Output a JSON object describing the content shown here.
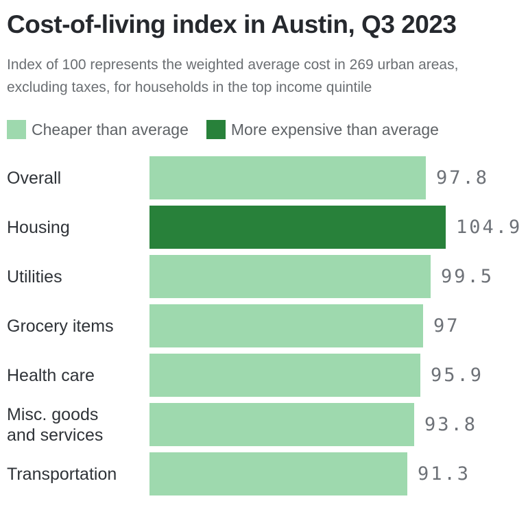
{
  "chart_data": {
    "type": "bar",
    "orientation": "horizontal",
    "title": "Cost-of-living index in Austin, Q3 2023",
    "subtitle": "Index of 100 represents the weighted average cost in 269 urban areas, excluding taxes, for households in the top income quintile",
    "categories": [
      "Overall",
      "Housing",
      "Utilities",
      "Grocery items",
      "Health care",
      "Misc. goods and services",
      "Transportation"
    ],
    "values": [
      97.8,
      104.9,
      99.5,
      97,
      95.9,
      93.8,
      91.3
    ],
    "value_labels": [
      "97.8",
      "104.9",
      "99.5",
      "97",
      "95.9",
      "93.8",
      "91.3"
    ],
    "xlim": [
      0,
      104.9
    ],
    "reference_value": 100,
    "grid": false,
    "legend_position": "top",
    "legend": [
      {
        "label": "Cheaper than average",
        "color": "#9ed9ae"
      },
      {
        "label": "More expensive than average",
        "color": "#28813a"
      }
    ],
    "colors": {
      "cheaper": "#9ed9ae",
      "expensive": "#28813a",
      "title": "#26292e",
      "subtitle": "#6a6e72",
      "category_label": "#2f3338",
      "value_label": "#6d7177"
    }
  }
}
